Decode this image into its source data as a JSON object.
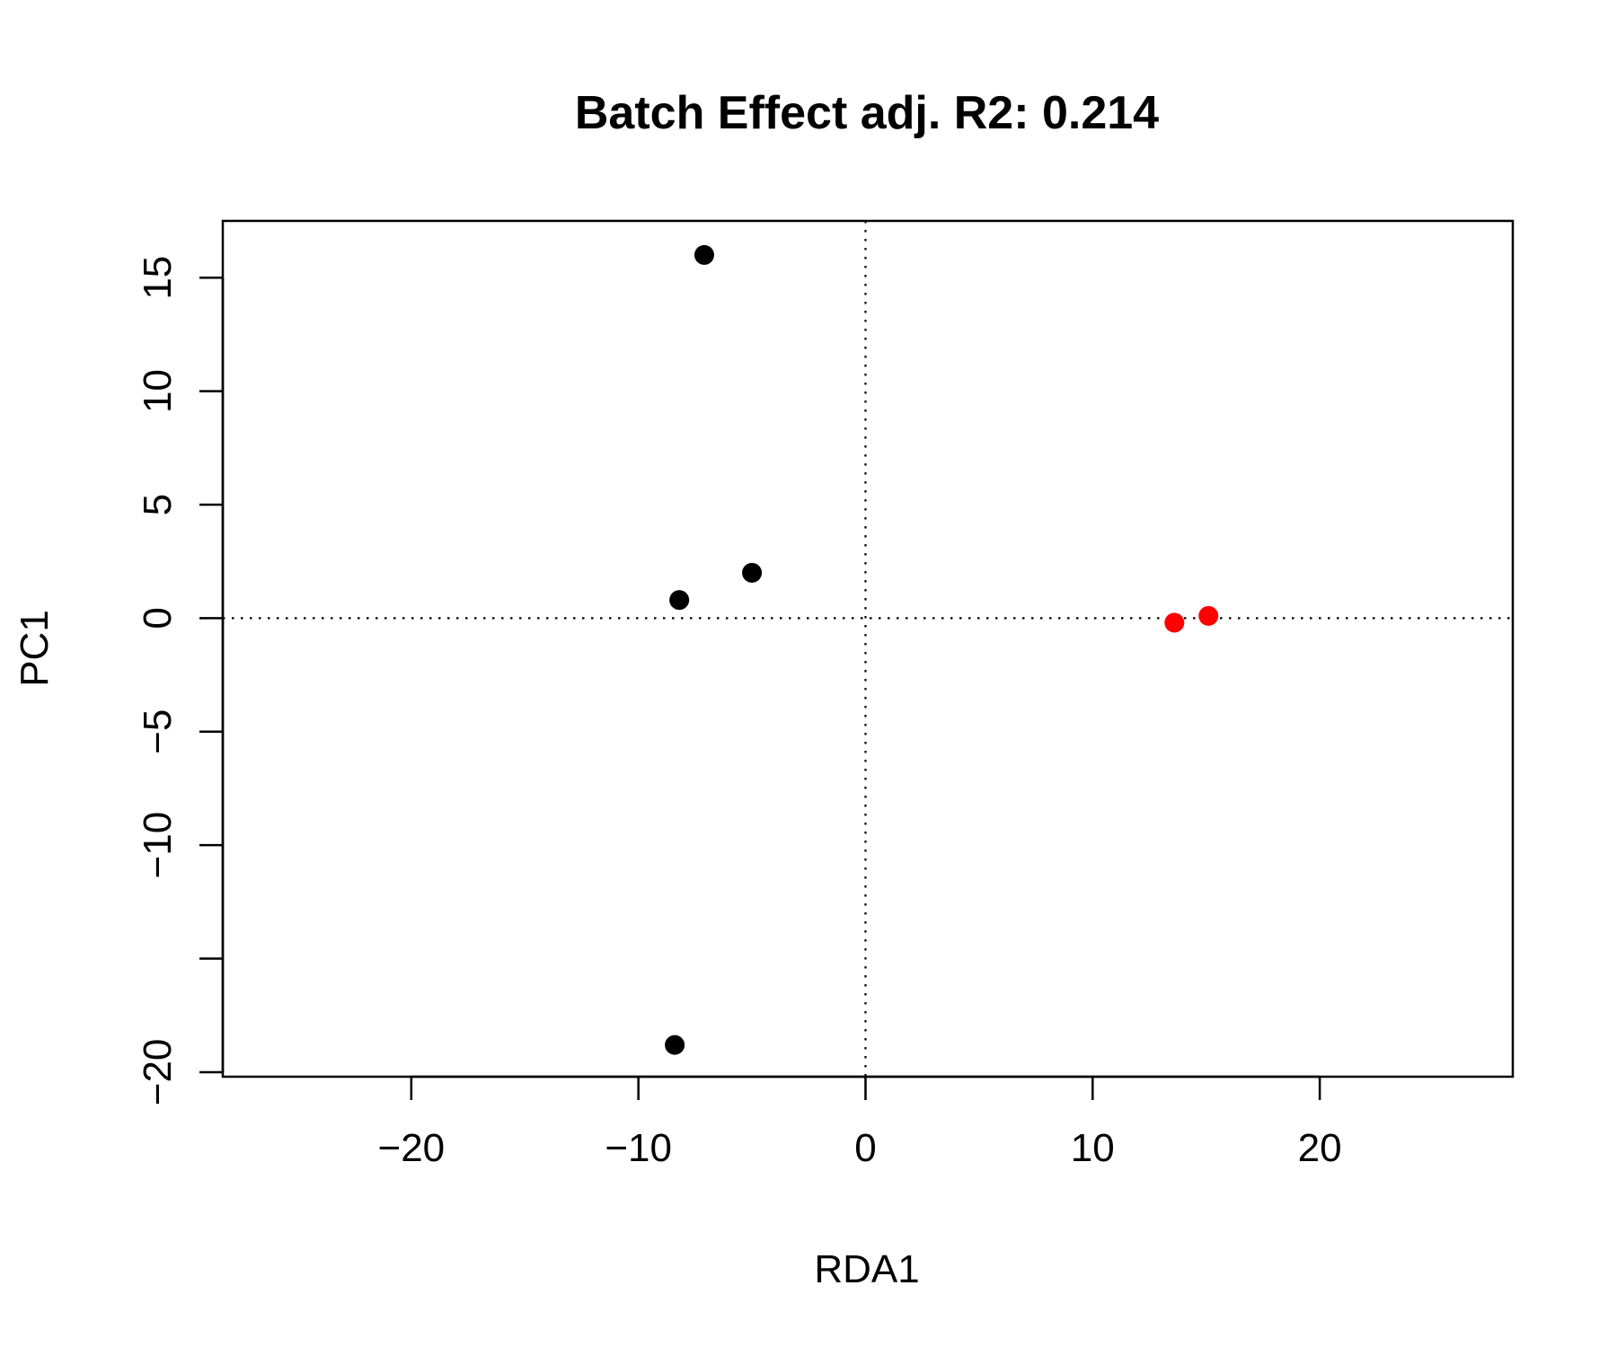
{
  "chart_data": {
    "type": "scatter",
    "title": "Batch Effect adj. R2: 0.214",
    "xlabel": "RDA1",
    "ylabel": "PC1",
    "xlim": [
      -28.3,
      28.5
    ],
    "ylim": [
      -20.2,
      17.5
    ],
    "x_ticks": [
      -20,
      -10,
      0,
      10,
      20
    ],
    "x_tick_labels": [
      "−20",
      "−10",
      "0",
      "10",
      "20"
    ],
    "y_ticks": [
      -20,
      -15,
      -10,
      -5,
      0,
      5,
      10,
      15
    ],
    "y_tick_labels": [
      "−20",
      "",
      "−10",
      "−5",
      "0",
      "5",
      "10",
      "15"
    ],
    "reference_lines": {
      "x": 0,
      "y": 0,
      "style": "dotted"
    },
    "grid": false,
    "series": [
      {
        "color": "#000000",
        "points": [
          {
            "x": -7.1,
            "y": 16.0
          },
          {
            "x": -5.0,
            "y": 2.0
          },
          {
            "x": -8.2,
            "y": 0.8
          },
          {
            "x": -8.4,
            "y": -18.8
          }
        ]
      },
      {
        "color": "#ff0000",
        "points": [
          {
            "x": 13.6,
            "y": -0.2
          },
          {
            "x": 15.1,
            "y": 0.1
          }
        ]
      }
    ]
  }
}
